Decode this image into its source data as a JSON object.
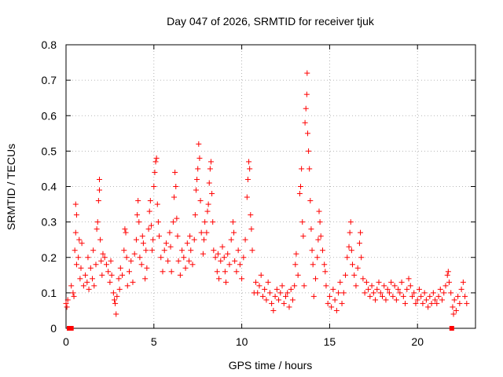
{
  "chart_data": {
    "type": "scatter",
    "title": "Day 047 of 2026, SRMTID for receiver tjuk",
    "xlabel": "GPS time / hours",
    "ylabel": "SRMTID / TECUs",
    "xlim": [
      0,
      23.3
    ],
    "ylim": [
      0,
      0.8
    ],
    "xticks": [
      0,
      5,
      10,
      15,
      20
    ],
    "yticks": [
      0,
      0.1,
      0.2,
      0.3,
      0.4,
      0.5,
      0.6,
      0.7,
      0.8
    ],
    "grid": true,
    "marker": "+",
    "marker_color": "#ff0000",
    "series": [
      {
        "name": "SRMTID",
        "points": [
          [
            0.0,
            0.07
          ],
          [
            0.05,
            0.06
          ],
          [
            0.1,
            0.08
          ],
          [
            0.3,
            0.12
          ],
          [
            0.4,
            0.1
          ],
          [
            0.45,
            0.09
          ],
          [
            0.5,
            0.22
          ],
          [
            0.55,
            0.27
          ],
          [
            0.55,
            0.35
          ],
          [
            0.6,
            0.32
          ],
          [
            0.6,
            0.18
          ],
          [
            0.7,
            0.2
          ],
          [
            0.75,
            0.25
          ],
          [
            0.8,
            0.14
          ],
          [
            0.85,
            0.17
          ],
          [
            0.9,
            0.24
          ],
          [
            1.0,
            0.12
          ],
          [
            1.1,
            0.15
          ],
          [
            1.2,
            0.13
          ],
          [
            1.25,
            0.2
          ],
          [
            1.3,
            0.11
          ],
          [
            1.4,
            0.17
          ],
          [
            1.5,
            0.14
          ],
          [
            1.55,
            0.22
          ],
          [
            1.6,
            0.12
          ],
          [
            1.7,
            0.18
          ],
          [
            1.75,
            0.28
          ],
          [
            1.8,
            0.3
          ],
          [
            1.85,
            0.36
          ],
          [
            1.9,
            0.42
          ],
          [
            1.9,
            0.39
          ],
          [
            1.95,
            0.25
          ],
          [
            2.0,
            0.19
          ],
          [
            2.05,
            0.15
          ],
          [
            2.1,
            0.21
          ],
          [
            2.2,
            0.2
          ],
          [
            2.3,
            0.18
          ],
          [
            2.4,
            0.16
          ],
          [
            2.5,
            0.13
          ],
          [
            2.55,
            0.19
          ],
          [
            2.6,
            0.15
          ],
          [
            2.7,
            0.1
          ],
          [
            2.75,
            0.08
          ],
          [
            2.8,
            0.07
          ],
          [
            2.85,
            0.04
          ],
          [
            2.9,
            0.09
          ],
          [
            3.0,
            0.14
          ],
          [
            3.05,
            0.11
          ],
          [
            3.1,
            0.17
          ],
          [
            3.2,
            0.15
          ],
          [
            3.3,
            0.22
          ],
          [
            3.35,
            0.28
          ],
          [
            3.4,
            0.27
          ],
          [
            3.45,
            0.2
          ],
          [
            3.5,
            0.12
          ],
          [
            3.6,
            0.16
          ],
          [
            3.7,
            0.19
          ],
          [
            3.8,
            0.13
          ],
          [
            3.9,
            0.21
          ],
          [
            4.0,
            0.25
          ],
          [
            4.05,
            0.32
          ],
          [
            4.1,
            0.36
          ],
          [
            4.15,
            0.3
          ],
          [
            4.2,
            0.2
          ],
          [
            4.3,
            0.18
          ],
          [
            4.35,
            0.26
          ],
          [
            4.4,
            0.24
          ],
          [
            4.5,
            0.14
          ],
          [
            4.55,
            0.22
          ],
          [
            4.6,
            0.17
          ],
          [
            4.7,
            0.28
          ],
          [
            4.75,
            0.33
          ],
          [
            4.8,
            0.36
          ],
          [
            4.85,
            0.29
          ],
          [
            4.9,
            0.22
          ],
          [
            4.95,
            0.25
          ],
          [
            5.0,
            0.4
          ],
          [
            5.05,
            0.44
          ],
          [
            5.1,
            0.47
          ],
          [
            5.15,
            0.48
          ],
          [
            5.2,
            0.35
          ],
          [
            5.25,
            0.3
          ],
          [
            5.3,
            0.26
          ],
          [
            5.4,
            0.2
          ],
          [
            5.5,
            0.16
          ],
          [
            5.6,
            0.22
          ],
          [
            5.7,
            0.24
          ],
          [
            5.8,
            0.19
          ],
          [
            5.9,
            0.27
          ],
          [
            5.95,
            0.23
          ],
          [
            6.0,
            0.16
          ],
          [
            6.1,
            0.3
          ],
          [
            6.15,
            0.37
          ],
          [
            6.2,
            0.44
          ],
          [
            6.25,
            0.4
          ],
          [
            6.3,
            0.31
          ],
          [
            6.35,
            0.26
          ],
          [
            6.4,
            0.19
          ],
          [
            6.5,
            0.15
          ],
          [
            6.6,
            0.22
          ],
          [
            6.7,
            0.2
          ],
          [
            6.8,
            0.17
          ],
          [
            6.9,
            0.24
          ],
          [
            7.0,
            0.19
          ],
          [
            7.05,
            0.26
          ],
          [
            7.1,
            0.22
          ],
          [
            7.2,
            0.18
          ],
          [
            7.3,
            0.25
          ],
          [
            7.35,
            0.32
          ],
          [
            7.4,
            0.39
          ],
          [
            7.45,
            0.42
          ],
          [
            7.5,
            0.45
          ],
          [
            7.55,
            0.52
          ],
          [
            7.6,
            0.48
          ],
          [
            7.65,
            0.36
          ],
          [
            7.7,
            0.27
          ],
          [
            7.8,
            0.21
          ],
          [
            7.85,
            0.25
          ],
          [
            7.9,
            0.3
          ],
          [
            8.0,
            0.27
          ],
          [
            8.05,
            0.33
          ],
          [
            8.1,
            0.35
          ],
          [
            8.15,
            0.41
          ],
          [
            8.2,
            0.45
          ],
          [
            8.25,
            0.47
          ],
          [
            8.3,
            0.38
          ],
          [
            8.35,
            0.3
          ],
          [
            8.4,
            0.22
          ],
          [
            8.5,
            0.2
          ],
          [
            8.6,
            0.16
          ],
          [
            8.65,
            0.21
          ],
          [
            8.7,
            0.14
          ],
          [
            8.8,
            0.19
          ],
          [
            8.9,
            0.23
          ],
          [
            9.0,
            0.2
          ],
          [
            9.05,
            0.16
          ],
          [
            9.1,
            0.13
          ],
          [
            9.2,
            0.21
          ],
          [
            9.3,
            0.18
          ],
          [
            9.4,
            0.25
          ],
          [
            9.5,
            0.3
          ],
          [
            9.55,
            0.27
          ],
          [
            9.6,
            0.19
          ],
          [
            9.7,
            0.16
          ],
          [
            9.8,
            0.22
          ],
          [
            9.9,
            0.18
          ],
          [
            10.0,
            0.14
          ],
          [
            10.1,
            0.2
          ],
          [
            10.2,
            0.25
          ],
          [
            10.3,
            0.37
          ],
          [
            10.35,
            0.42
          ],
          [
            10.4,
            0.47
          ],
          [
            10.45,
            0.45
          ],
          [
            10.5,
            0.32
          ],
          [
            10.55,
            0.28
          ],
          [
            10.6,
            0.22
          ],
          [
            10.7,
            0.1
          ],
          [
            10.8,
            0.13
          ],
          [
            10.9,
            0.1
          ],
          [
            11.0,
            0.12
          ],
          [
            11.1,
            0.15
          ],
          [
            11.2,
            0.09
          ],
          [
            11.3,
            0.11
          ],
          [
            11.4,
            0.08
          ],
          [
            11.5,
            0.13
          ],
          [
            11.6,
            0.1
          ],
          [
            11.7,
            0.07
          ],
          [
            11.8,
            0.05
          ],
          [
            11.9,
            0.09
          ],
          [
            12.0,
            0.11
          ],
          [
            12.1,
            0.08
          ],
          [
            12.2,
            0.1
          ],
          [
            12.3,
            0.12
          ],
          [
            12.4,
            0.07
          ],
          [
            12.5,
            0.09
          ],
          [
            12.6,
            0.1
          ],
          [
            12.7,
            0.06
          ],
          [
            12.8,
            0.11
          ],
          [
            12.9,
            0.08
          ],
          [
            13.0,
            0.12
          ],
          [
            13.05,
            0.18
          ],
          [
            13.1,
            0.21
          ],
          [
            13.2,
            0.15
          ],
          [
            13.3,
            0.38
          ],
          [
            13.35,
            0.4
          ],
          [
            13.4,
            0.45
          ],
          [
            13.45,
            0.3
          ],
          [
            13.5,
            0.26
          ],
          [
            13.55,
            0.12
          ],
          [
            13.6,
            0.58
          ],
          [
            13.65,
            0.62
          ],
          [
            13.7,
            0.66
          ],
          [
            13.72,
            0.72
          ],
          [
            13.75,
            0.55
          ],
          [
            13.8,
            0.5
          ],
          [
            13.85,
            0.45
          ],
          [
            13.9,
            0.36
          ],
          [
            13.95,
            0.28
          ],
          [
            14.0,
            0.22
          ],
          [
            14.05,
            0.18
          ],
          [
            14.1,
            0.09
          ],
          [
            14.2,
            0.14
          ],
          [
            14.3,
            0.2
          ],
          [
            14.35,
            0.25
          ],
          [
            14.4,
            0.33
          ],
          [
            14.45,
            0.3
          ],
          [
            14.5,
            0.26
          ],
          [
            14.6,
            0.22
          ],
          [
            14.7,
            0.18
          ],
          [
            14.75,
            0.16
          ],
          [
            14.8,
            0.12
          ],
          [
            14.9,
            0.07
          ],
          [
            15.0,
            0.09
          ],
          [
            15.1,
            0.06
          ],
          [
            15.2,
            0.11
          ],
          [
            15.3,
            0.08
          ],
          [
            15.4,
            0.05
          ],
          [
            15.5,
            0.1
          ],
          [
            15.6,
            0.13
          ],
          [
            15.7,
            0.07
          ],
          [
            15.8,
            0.1
          ],
          [
            15.9,
            0.15
          ],
          [
            16.0,
            0.2
          ],
          [
            16.1,
            0.23
          ],
          [
            16.15,
            0.27
          ],
          [
            16.2,
            0.3
          ],
          [
            16.25,
            0.22
          ],
          [
            16.3,
            0.18
          ],
          [
            16.4,
            0.15
          ],
          [
            16.5,
            0.12
          ],
          [
            16.6,
            0.17
          ],
          [
            16.7,
            0.24
          ],
          [
            16.75,
            0.27
          ],
          [
            16.8,
            0.2
          ],
          [
            16.9,
            0.14
          ],
          [
            17.0,
            0.1
          ],
          [
            17.1,
            0.13
          ],
          [
            17.2,
            0.11
          ],
          [
            17.3,
            0.09
          ],
          [
            17.4,
            0.12
          ],
          [
            17.5,
            0.1
          ],
          [
            17.6,
            0.08
          ],
          [
            17.7,
            0.11
          ],
          [
            17.8,
            0.13
          ],
          [
            17.9,
            0.1
          ],
          [
            18.0,
            0.09
          ],
          [
            18.1,
            0.12
          ],
          [
            18.2,
            0.08
          ],
          [
            18.3,
            0.11
          ],
          [
            18.4,
            0.1
          ],
          [
            18.5,
            0.13
          ],
          [
            18.6,
            0.09
          ],
          [
            18.7,
            0.12
          ],
          [
            18.8,
            0.08
          ],
          [
            18.9,
            0.11
          ],
          [
            19.0,
            0.1
          ],
          [
            19.1,
            0.13
          ],
          [
            19.2,
            0.09
          ],
          [
            19.3,
            0.07
          ],
          [
            19.4,
            0.11
          ],
          [
            19.5,
            0.14
          ],
          [
            19.6,
            0.12
          ],
          [
            19.7,
            0.09
          ],
          [
            19.8,
            0.1
          ],
          [
            19.9,
            0.07
          ],
          [
            20.0,
            0.08
          ],
          [
            20.1,
            0.11
          ],
          [
            20.2,
            0.09
          ],
          [
            20.3,
            0.07
          ],
          [
            20.4,
            0.1
          ],
          [
            20.5,
            0.08
          ],
          [
            20.6,
            0.06
          ],
          [
            20.7,
            0.09
          ],
          [
            20.8,
            0.07
          ],
          [
            20.9,
            0.1
          ],
          [
            21.0,
            0.08
          ],
          [
            21.1,
            0.07
          ],
          [
            21.2,
            0.09
          ],
          [
            21.3,
            0.11
          ],
          [
            21.4,
            0.08
          ],
          [
            21.5,
            0.1
          ],
          [
            21.6,
            0.12
          ],
          [
            21.7,
            0.15
          ],
          [
            21.75,
            0.16
          ],
          [
            21.8,
            0.13
          ],
          [
            21.9,
            0.1
          ],
          [
            22.0,
            0.06
          ],
          [
            22.05,
            0.04
          ],
          [
            22.1,
            0.08
          ],
          [
            22.2,
            0.05
          ],
          [
            22.3,
            0.09
          ],
          [
            22.4,
            0.07
          ],
          [
            22.5,
            0.11
          ],
          [
            22.6,
            0.13
          ],
          [
            22.7,
            0.09
          ],
          [
            22.8,
            0.07
          ]
        ]
      }
    ],
    "zero_markers": [
      [
        0.18,
        0
      ],
      [
        0.3,
        0
      ],
      [
        21.95,
        0
      ]
    ]
  }
}
